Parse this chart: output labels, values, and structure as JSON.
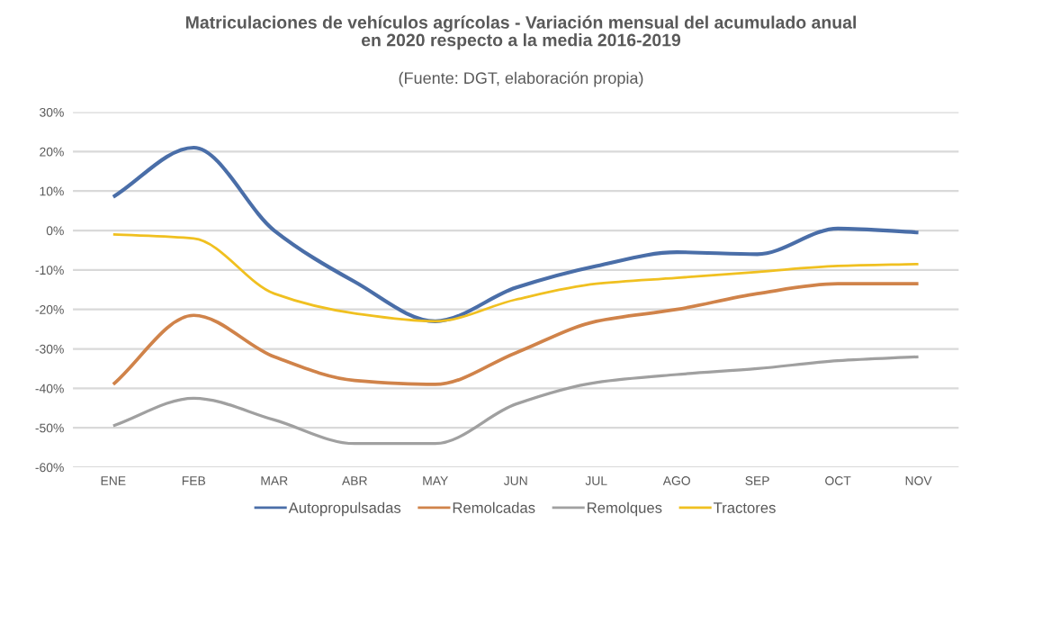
{
  "chart_data": {
    "type": "line",
    "title": "Matriculaciones de vehículos agrícolas - Variación mensual del acumulado anual\nen 2020 respecto a la media 2016-2019",
    "annotations": [
      "(Fuente: DGT, elaboración propia)"
    ],
    "categories": [
      "ENE",
      "FEB",
      "MAR",
      "ABR",
      "MAY",
      "JUN",
      "JUL",
      "AGO",
      "SEP",
      "OCT",
      "NOV"
    ],
    "series": [
      {
        "name": "Autopropulsadas",
        "color": "#4a6ea8",
        "values": [
          8.5,
          21,
          0,
          -13,
          -23,
          -14.5,
          -9,
          -5.5,
          -6,
          0.5,
          -0.5
        ]
      },
      {
        "name": "Remolcadas",
        "color": "#d0834a",
        "values": [
          -39,
          -21.5,
          -32,
          -38,
          -39,
          -31,
          -23,
          -20,
          -16,
          -13.5,
          -13.5
        ]
      },
      {
        "name": "Remolques",
        "color": "#a0a0a0",
        "values": [
          -49.5,
          -42.5,
          -48,
          -54,
          -54,
          -44,
          -38.5,
          -36.5,
          -35,
          -33,
          -32
        ]
      },
      {
        "name": "Tractores",
        "color": "#f0c020",
        "values": [
          -1,
          -2,
          -16,
          -21,
          -23,
          -17.5,
          -13.5,
          -12,
          -10.5,
          -9,
          -8.5
        ]
      }
    ],
    "ylim": [
      -60,
      30
    ],
    "yticks": [
      {
        "value": -60,
        "label": "-60%"
      },
      {
        "value": -50,
        "label": "-50%"
      },
      {
        "value": -40,
        "label": "-40%"
      },
      {
        "value": -30,
        "label": "-30%"
      },
      {
        "value": -20,
        "label": "-20%"
      },
      {
        "value": -10,
        "label": "-10%"
      },
      {
        "value": 0,
        "label": "0%"
      },
      {
        "value": 10,
        "label": "10%"
      },
      {
        "value": 20,
        "label": "20%"
      },
      {
        "value": 30,
        "label": "30%"
      }
    ],
    "grid": "y",
    "legend": "bottom",
    "marker": "none",
    "line_style": "solid"
  }
}
